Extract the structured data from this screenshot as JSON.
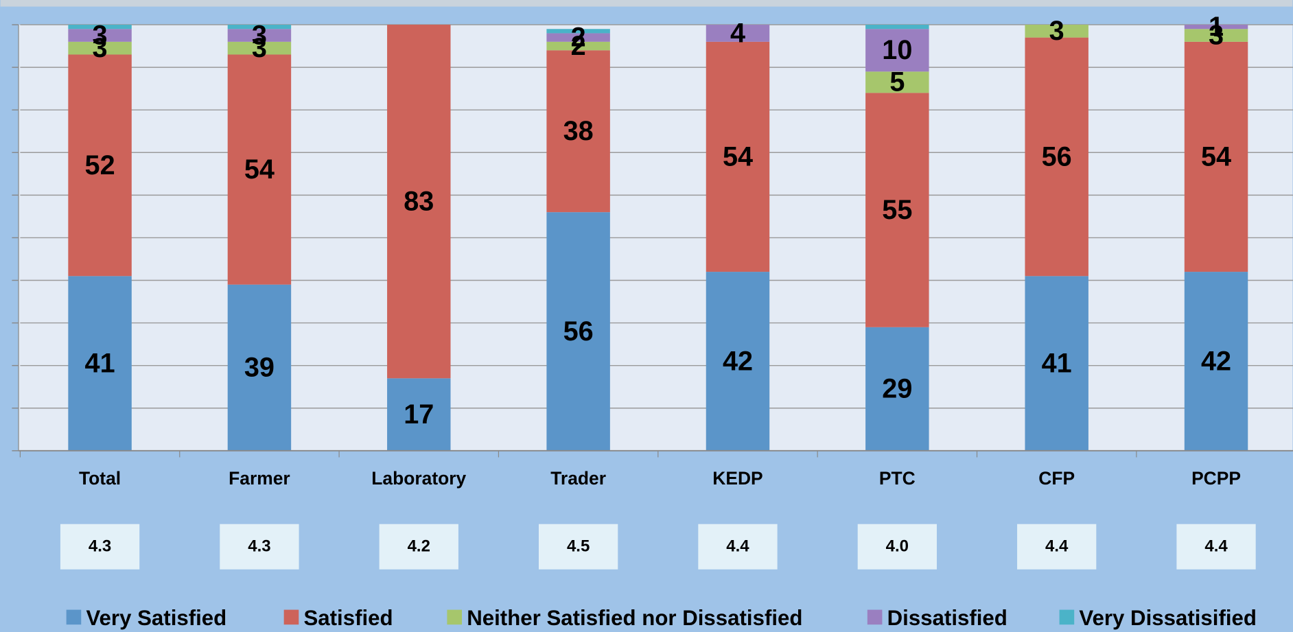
{
  "chart_data": {
    "type": "stacked_bar",
    "categories": [
      "Total",
      "Farmer",
      "Laboratory",
      "Trader",
      "KEDP",
      "PTC",
      "CFP",
      "PCPP"
    ],
    "series": [
      {
        "name": "Very Satisfied",
        "color": "#5b95c9",
        "values": [
          41,
          39,
          17,
          56,
          42,
          29,
          41,
          42
        ]
      },
      {
        "name": "Satisfied",
        "color": "#cd635a",
        "values": [
          52,
          54,
          83,
          38,
          54,
          55,
          56,
          54
        ]
      },
      {
        "name": "Neither Satisfied nor Dissatisfied",
        "color": "#a6c66c",
        "values": [
          3,
          3,
          0,
          2,
          0,
          5,
          3,
          3
        ],
        "value_labels": [
          "3",
          "3",
          null,
          "2",
          null,
          "5",
          "3",
          "3"
        ]
      },
      {
        "name": "Dissatisfied",
        "color": "#9a7fc0",
        "values": [
          3,
          3,
          0,
          2,
          4,
          10,
          0,
          1
        ],
        "value_labels": [
          "3",
          "3",
          null,
          "2",
          "4",
          "10",
          null,
          "1"
        ]
      },
      {
        "name": "Very Dissatisified",
        "color": "#4bb3c8",
        "values": [
          1,
          1,
          0,
          1,
          0,
          1,
          0,
          0
        ],
        "value_labels": [
          null,
          null,
          null,
          null,
          null,
          null,
          null,
          null
        ]
      }
    ],
    "mean_scores": [
      "4.3",
      "4.3",
      "4.2",
      "4.5",
      "4.4",
      "4.0",
      "4.4",
      "4.4"
    ],
    "ylim": [
      0,
      100
    ],
    "yticks": [
      0,
      10,
      20,
      30,
      40,
      50,
      60,
      70,
      80,
      90,
      100
    ],
    "grid": true
  }
}
